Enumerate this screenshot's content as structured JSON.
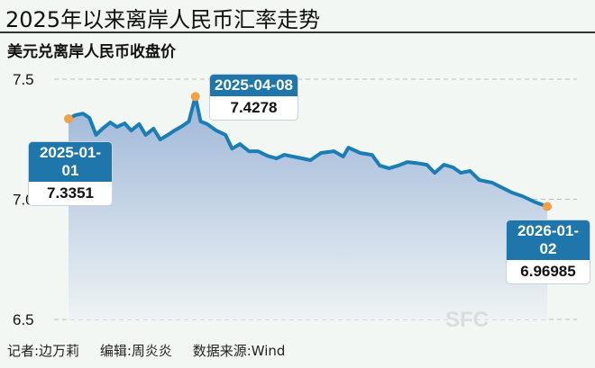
{
  "title": "2025年以来离岸人民币汇率走势",
  "footer": {
    "reporter": "记者:边万莉",
    "editor": "编辑:周炎炎",
    "source": "数据来源:Wind"
  },
  "watermark": "SFC",
  "colors": {
    "line": "#1a7db5",
    "marker": "#f0a24a",
    "callout_header": "#1f76ab",
    "background": "#f3f7f3"
  },
  "chart_data": {
    "type": "area",
    "title": "美元兑离岸人民币收盘价",
    "xlabel": "",
    "ylabel": "",
    "ylim": [
      6.5,
      7.5
    ],
    "yticks": [
      "7.5",
      "7.0",
      "6.5"
    ],
    "xlim": [
      "2025-01-01",
      "2026-01-02"
    ],
    "grid": "horizontal dashed",
    "points": [
      [
        "2025-01-01",
        7.3351
      ],
      [
        "2025-01-06",
        7.35
      ],
      [
        "2025-01-12",
        7.357
      ],
      [
        "2025-01-17",
        7.339
      ],
      [
        "2025-01-22",
        7.268
      ],
      [
        "2025-01-27",
        7.294
      ],
      [
        "2025-02-02",
        7.32
      ],
      [
        "2025-02-07",
        7.301
      ],
      [
        "2025-02-13",
        7.316
      ],
      [
        "2025-02-18",
        7.286
      ],
      [
        "2025-02-24",
        7.313
      ],
      [
        "2025-03-01",
        7.268
      ],
      [
        "2025-03-07",
        7.294
      ],
      [
        "2025-03-12",
        7.249
      ],
      [
        "2025-03-18",
        7.268
      ],
      [
        "2025-03-23",
        7.286
      ],
      [
        "2025-03-29",
        7.305
      ],
      [
        "2025-04-03",
        7.324
      ],
      [
        "2025-04-08",
        7.4278
      ],
      [
        "2025-04-12",
        7.324
      ],
      [
        "2025-04-17",
        7.313
      ],
      [
        "2025-04-24",
        7.286
      ],
      [
        "2025-05-01",
        7.268
      ],
      [
        "2025-05-06",
        7.211
      ],
      [
        "2025-05-12",
        7.23
      ],
      [
        "2025-05-19",
        7.2
      ],
      [
        "2025-05-26",
        7.2
      ],
      [
        "2025-06-02",
        7.181
      ],
      [
        "2025-06-09",
        7.17
      ],
      [
        "2025-06-15",
        7.185
      ],
      [
        "2025-06-25",
        7.174
      ],
      [
        "2025-07-05",
        7.163
      ],
      [
        "2025-07-13",
        7.193
      ],
      [
        "2025-07-23",
        7.2
      ],
      [
        "2025-07-30",
        7.178
      ],
      [
        "2025-08-03",
        7.215
      ],
      [
        "2025-08-12",
        7.193
      ],
      [
        "2025-08-21",
        7.185
      ],
      [
        "2025-08-27",
        7.14
      ],
      [
        "2025-09-03",
        7.129
      ],
      [
        "2025-09-10",
        7.14
      ],
      [
        "2025-09-17",
        7.155
      ],
      [
        "2025-09-24",
        7.151
      ],
      [
        "2025-10-02",
        7.144
      ],
      [
        "2025-10-08",
        7.11
      ],
      [
        "2025-10-15",
        7.144
      ],
      [
        "2025-10-22",
        7.133
      ],
      [
        "2025-10-28",
        7.11
      ],
      [
        "2025-11-04",
        7.118
      ],
      [
        "2025-11-11",
        7.08
      ],
      [
        "2025-11-21",
        7.069
      ],
      [
        "2025-11-28",
        7.05
      ],
      [
        "2025-12-06",
        7.028
      ],
      [
        "2025-12-14",
        7.013
      ],
      [
        "2025-12-23",
        6.99
      ],
      [
        "2026-01-02",
        6.96985
      ]
    ],
    "annotations": [
      {
        "date": "2025-01-01",
        "value": "7.3351"
      },
      {
        "date": "2025-04-08",
        "value": "7.4278"
      },
      {
        "date": "2026-01-02",
        "value": "6.96985"
      }
    ]
  }
}
